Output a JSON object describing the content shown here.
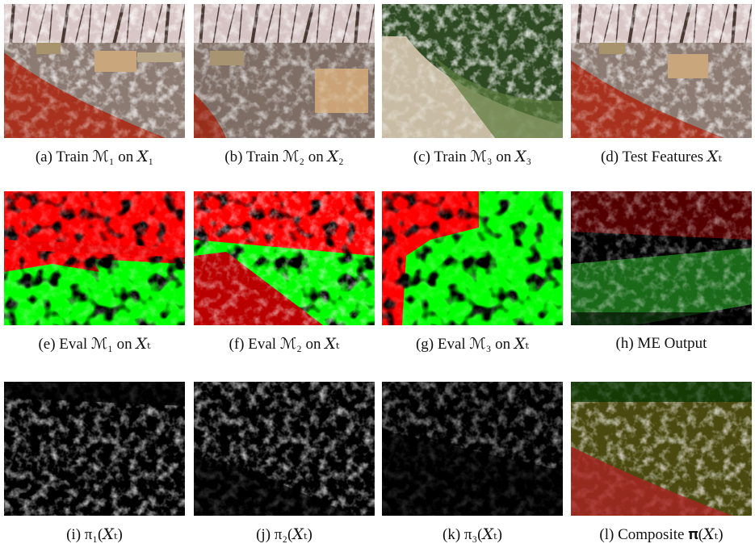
{
  "panels": [
    {
      "caption": "(a) Train ℳ₁ on 𝑋₁"
    },
    {
      "caption": "(b) Train ℳ₂ on 𝑋₂"
    },
    {
      "caption": "(c) Train ℳ₃ on 𝑋₃"
    },
    {
      "caption": "(d) Test Features 𝑋ₜ"
    },
    {
      "caption": "(e) Eval ℳ₁ on 𝑋ₜ"
    },
    {
      "caption": "(f) Eval ℳ₂ on 𝑋ₜ"
    },
    {
      "caption": "(g) Eval ℳ₃ on 𝑋ₜ"
    },
    {
      "caption": "(h) ME Output"
    },
    {
      "caption": "(i) π₁(𝑋ₜ)"
    },
    {
      "caption": "(j) π₂(𝑋ₜ)"
    },
    {
      "caption": "(k) π₃(𝑋ₜ)"
    },
    {
      "caption": "(l) Composite 𝛑(𝑋ₜ)"
    }
  ]
}
